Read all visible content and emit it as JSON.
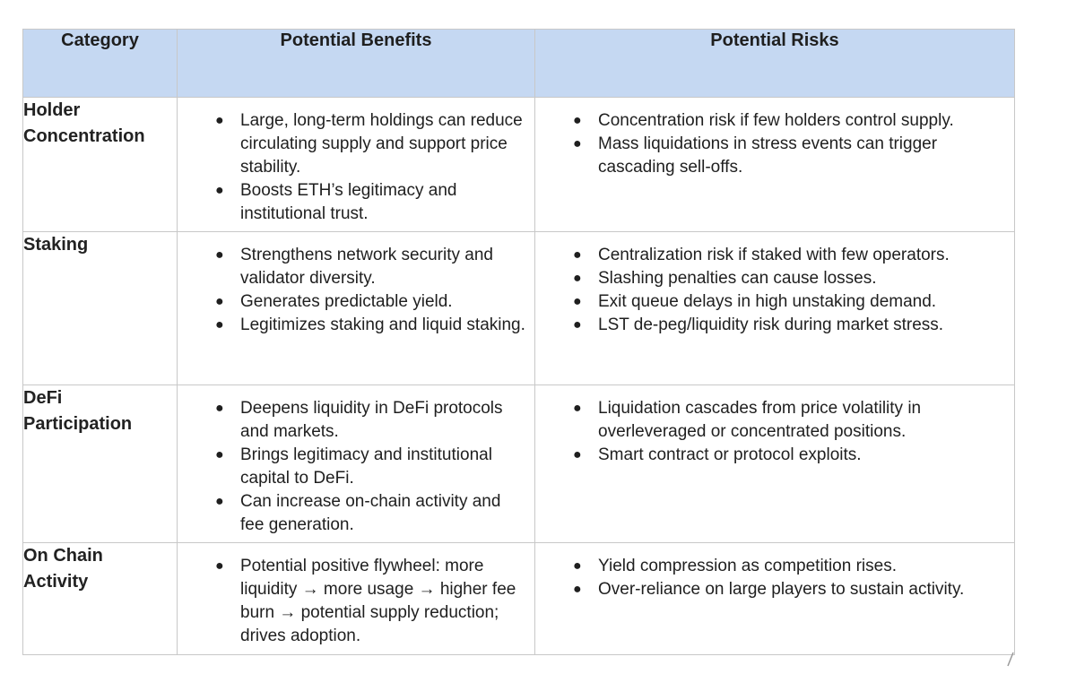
{
  "table": {
    "headers": [
      "Category",
      "Potential Benefits",
      "Potential Risks"
    ],
    "rows": [
      {
        "category": [
          "Holder",
          "Concentration"
        ],
        "benefits": [
          "Large, long-term holdings can reduce circulating supply and support price stability.",
          "Boosts ETH’s legitimacy and institutional trust."
        ],
        "risks": [
          "Concentration risk if few holders control supply.",
          "Mass liquidations in stress events can trigger cascading sell-offs."
        ]
      },
      {
        "category": [
          "Staking"
        ],
        "benefits": [
          "Strengthens network security and validator diversity.",
          "Generates predictable yield.",
          "Legitimizes staking and liquid staking."
        ],
        "risks": [
          "Centralization risk if staked with few operators.",
          "Slashing penalties can cause losses.",
          "Exit queue delays in high unstaking demand.",
          "LST de-peg/liquidity risk during market stress."
        ]
      },
      {
        "category": [
          "DeFi",
          "Participation"
        ],
        "benefits": [
          "Deepens liquidity in DeFi protocols and markets.",
          "Brings legitimacy and institutional capital to DeFi.",
          "Can increase on-chain activity and fee generation."
        ],
        "risks": [
          "Liquidation cascades from price volatility in overleveraged or concentrated positions.",
          "Smart contract or protocol exploits."
        ]
      },
      {
        "category": [
          "On Chain",
          "Activity"
        ],
        "benefits": [
          "Potential positive flywheel: more liquidity → more usage → higher fee burn → potential supply reduction; drives adoption."
        ],
        "risks": [
          "Yield compression as competition rises.",
          "Over-reliance on large players to sustain activity."
        ]
      }
    ]
  },
  "bullet_glyph": "●"
}
